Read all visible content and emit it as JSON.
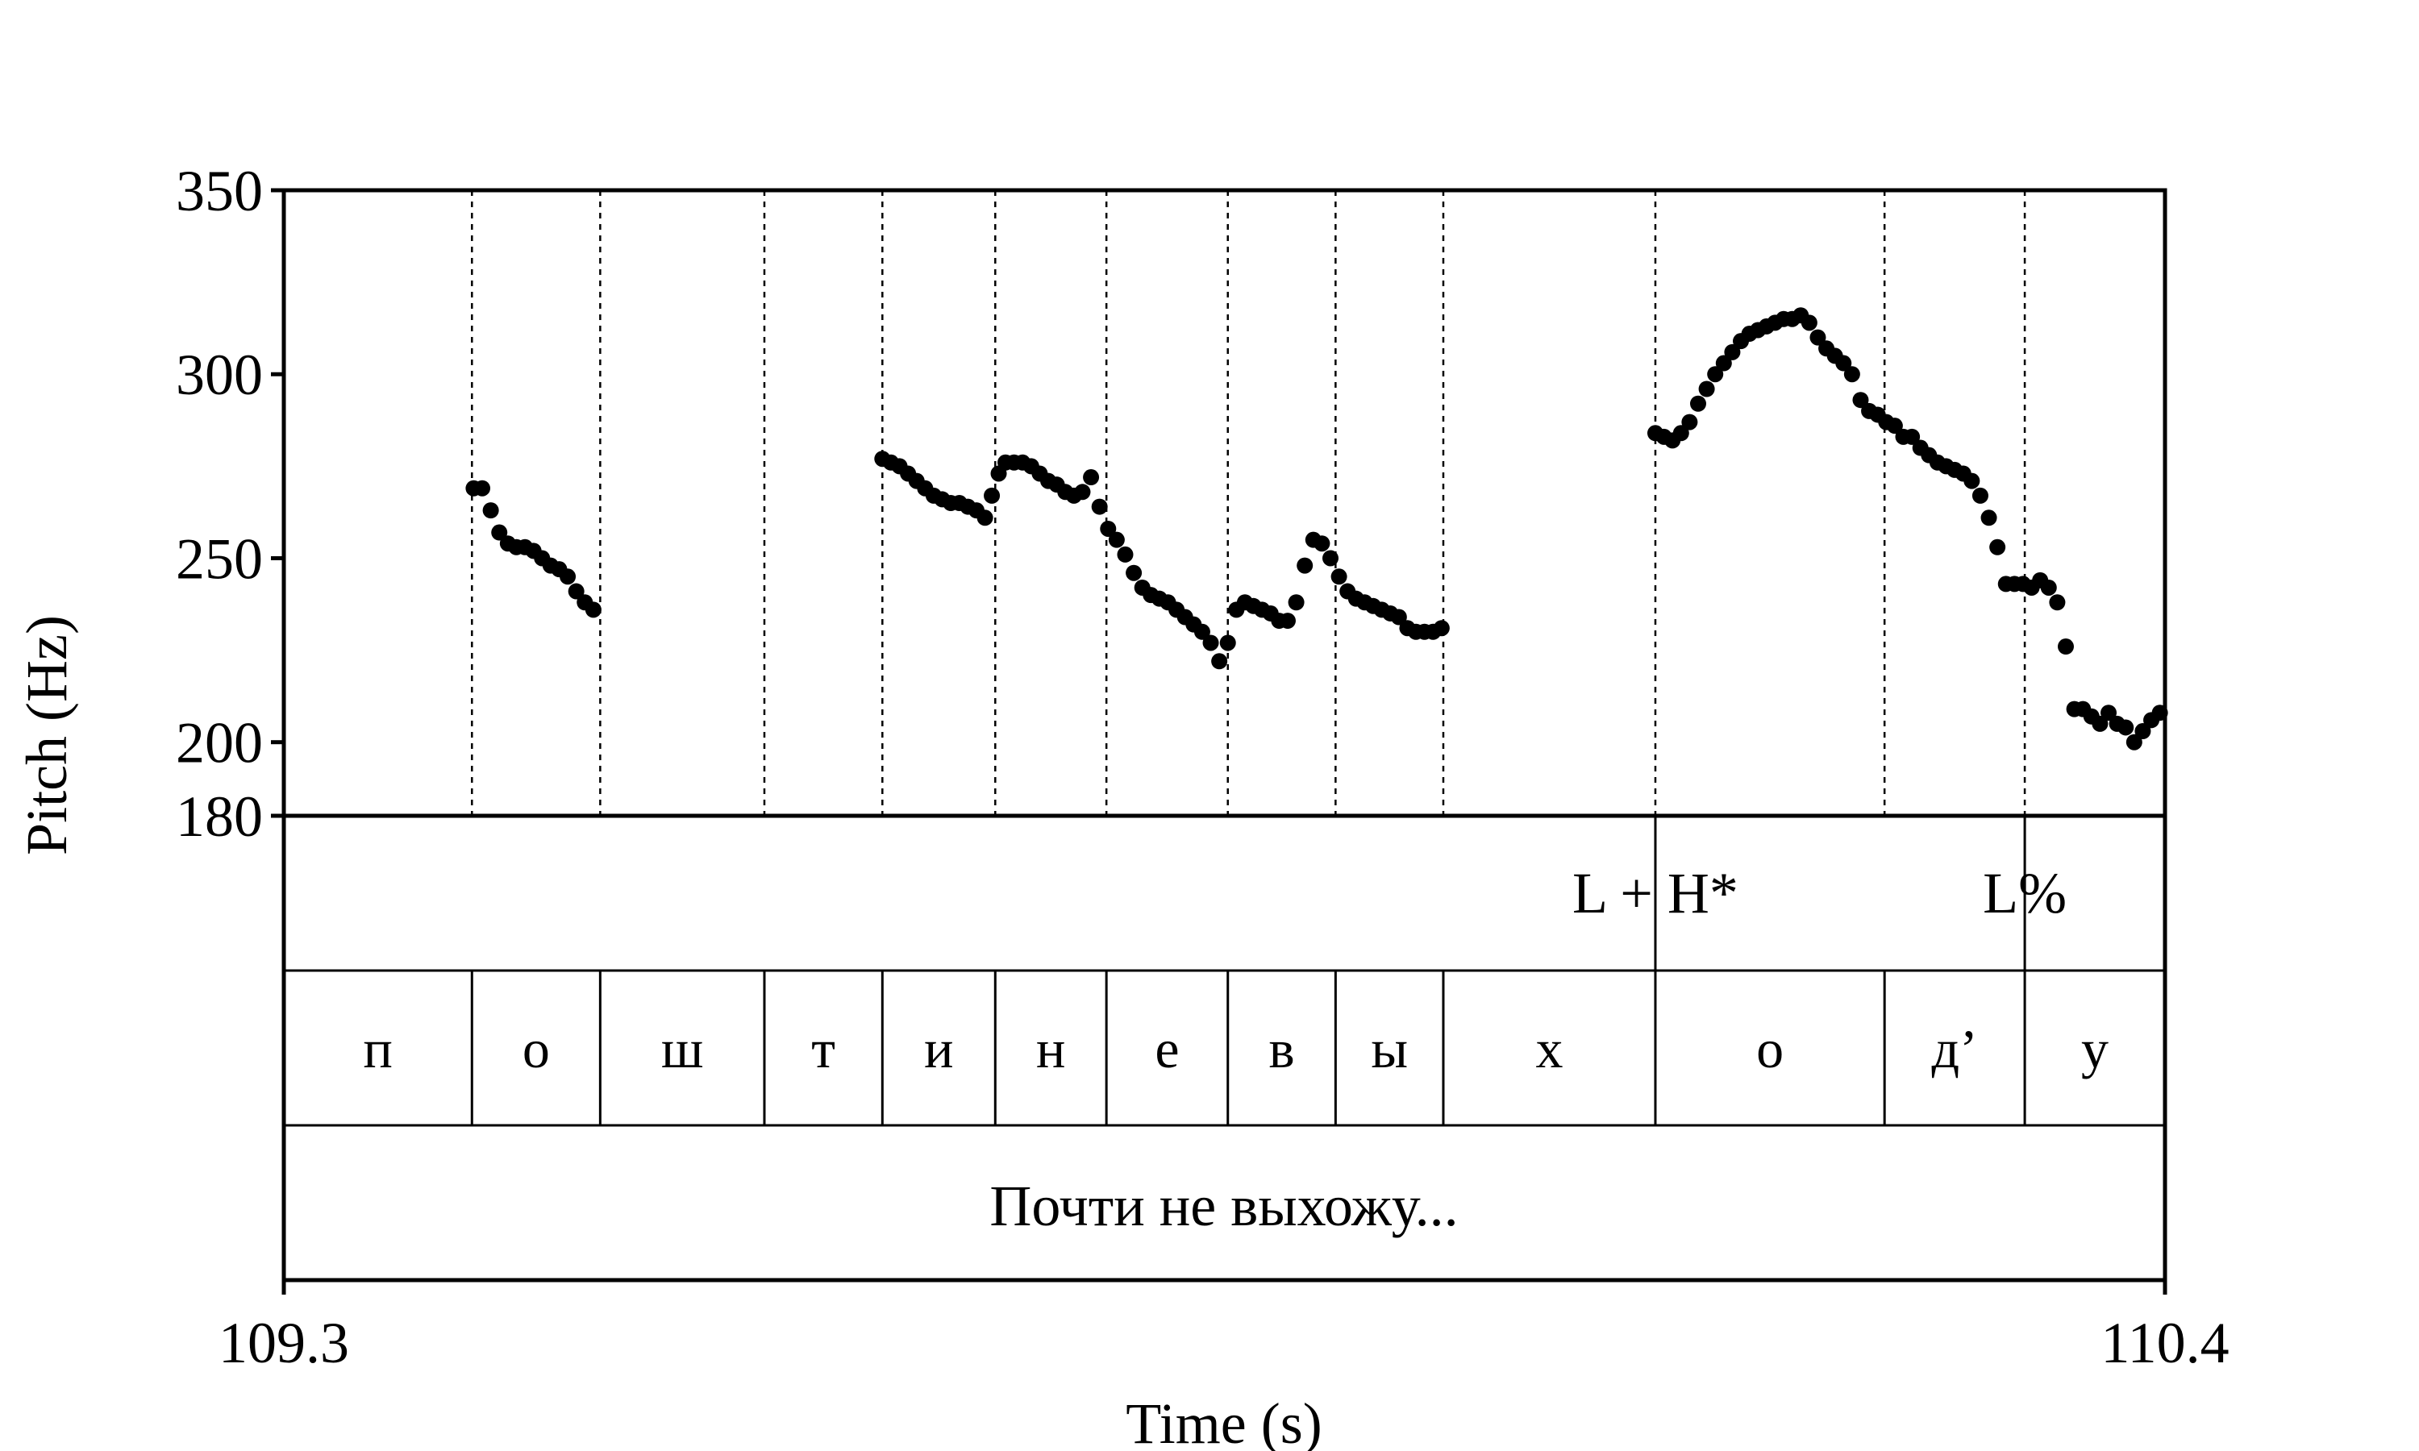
{
  "chart_data": {
    "type": "scatter",
    "xlabel": "Time (s)",
    "ylabel": "Pitch (Hz)",
    "xlim": [
      109.3,
      110.4
    ],
    "ylim": [
      180,
      350
    ],
    "x_ticks": [
      "109.3",
      "110.4"
    ],
    "y_ticks": [
      180,
      200,
      250,
      300,
      350
    ],
    "grid": false,
    "boundaries": [
      109.41,
      109.485,
      109.581,
      109.65,
      109.716,
      109.781,
      109.852,
      109.915,
      109.978,
      110.102,
      110.236,
      110.318
    ],
    "tones": [
      {
        "label": "L + H*",
        "time": 110.102
      },
      {
        "label": "L%",
        "time": 110.318
      }
    ],
    "segments": [
      "п",
      "о",
      "ш",
      "т",
      "и",
      "н",
      "е",
      "в",
      "ы",
      "х",
      "о",
      "д’",
      "у"
    ],
    "sentence": "Почти не выхожу...",
    "series": [
      {
        "x": [
          109.411,
          109.416,
          109.421,
          109.426,
          109.431,
          109.436,
          109.441,
          109.446,
          109.451,
          109.456,
          109.461,
          109.466,
          109.471,
          109.476,
          109.481,
          109.65,
          109.655,
          109.66,
          109.665,
          109.67,
          109.675,
          109.68,
          109.685,
          109.69,
          109.695,
          109.7,
          109.705,
          109.71,
          109.714,
          109.718,
          109.722,
          109.727,
          109.732,
          109.737,
          109.742,
          109.747,
          109.752,
          109.757,
          109.762,
          109.767,
          109.772,
          109.777,
          109.782,
          109.787,
          109.792,
          109.797,
          109.802,
          109.807,
          109.812,
          109.817,
          109.822,
          109.827,
          109.832,
          109.837,
          109.842,
          109.847,
          109.852,
          109.857,
          109.862,
          109.867,
          109.872,
          109.877,
          109.882,
          109.887,
          109.892,
          109.897,
          109.902,
          109.907,
          109.912,
          109.917,
          109.922,
          109.927,
          109.932,
          109.937,
          109.942,
          109.947,
          109.952,
          109.957,
          109.962,
          109.967,
          109.972,
          109.977,
          110.102,
          110.107,
          110.112,
          110.117,
          110.122,
          110.127,
          110.132,
          110.137,
          110.142,
          110.147,
          110.152,
          110.157,
          110.162,
          110.167,
          110.172,
          110.177,
          110.182,
          110.187,
          110.192,
          110.197,
          110.202,
          110.207,
          110.212,
          110.217,
          110.222,
          110.227,
          110.232,
          110.237,
          110.242,
          110.247,
          110.252,
          110.257,
          110.262,
          110.267,
          110.272,
          110.277,
          110.282,
          110.287,
          110.292,
          110.297,
          110.302,
          110.307,
          110.312,
          110.317,
          110.322,
          110.327,
          110.332,
          110.337,
          110.342,
          110.347,
          110.352,
          110.357,
          110.362,
          110.367,
          110.372,
          110.377,
          110.382,
          110.387,
          110.392,
          110.397
        ],
        "y": [
          269,
          269,
          263,
          257,
          254,
          253,
          253,
          252,
          250,
          248,
          247,
          245,
          241,
          238,
          236,
          277,
          276,
          275,
          273,
          271,
          269,
          267,
          266,
          265,
          265,
          264,
          263,
          261,
          267,
          273,
          276,
          276,
          276,
          275,
          273,
          271,
          270,
          268,
          267,
          268,
          272,
          264,
          258,
          255,
          251,
          246,
          242,
          240,
          239,
          238,
          236,
          234,
          232,
          230,
          227,
          222,
          227,
          236,
          238,
          237,
          236,
          235,
          233,
          233,
          238,
          248,
          255,
          254,
          250,
          245,
          241,
          239,
          238,
          237,
          236,
          235,
          234,
          231,
          230,
          230,
          230,
          231,
          284,
          283,
          282,
          284,
          287,
          292,
          296,
          300,
          303,
          306,
          309,
          311,
          312,
          313,
          314,
          315,
          315,
          316,
          314,
          310,
          307,
          305,
          303,
          300,
          293,
          290,
          289,
          287,
          286,
          283,
          283,
          280,
          278,
          276,
          275,
          274,
          273,
          271,
          267,
          261,
          253,
          243,
          243,
          243,
          242,
          244,
          242,
          238,
          226,
          209,
          209,
          207,
          205,
          208,
          205,
          204,
          200,
          203,
          206,
          208
        ]
      }
    ]
  }
}
